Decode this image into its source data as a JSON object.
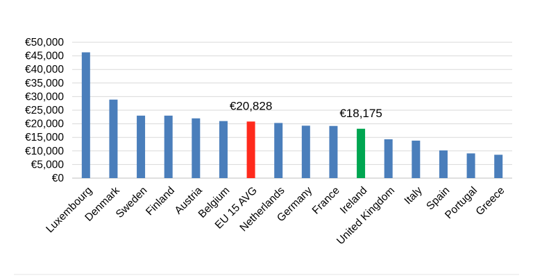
{
  "chart_data": {
    "type": "bar",
    "title": "",
    "xlabel": "",
    "ylabel": "",
    "ylim": [
      0,
      50000
    ],
    "ytick_step": 5000,
    "y_tick_labels": [
      "€0",
      "€5,000",
      "€10,000",
      "€15,000",
      "€20,000",
      "€25,000",
      "€30,000",
      "€35,000",
      "€40,000",
      "€45,000",
      "€50,000"
    ],
    "grid": true,
    "legend": "none",
    "categories": [
      "Luxembourg",
      "Denmark",
      "Sweden",
      "Finland",
      "Austria",
      "Belgium",
      "EU 15 AVG",
      "Netherlands",
      "Germany",
      "France",
      "Ireland",
      "United Kingdom",
      "Italy",
      "Spain",
      "Portugal",
      "Greece"
    ],
    "values": [
      46300,
      28900,
      23000,
      23000,
      22000,
      21000,
      20828,
      20300,
      19300,
      19200,
      18175,
      14300,
      13800,
      10200,
      9100,
      8600
    ],
    "bar_colors": [
      "#4a7ebb",
      "#4a7ebb",
      "#4a7ebb",
      "#4a7ebb",
      "#4a7ebb",
      "#4a7ebb",
      "#ff2a1c",
      "#4a7ebb",
      "#4a7ebb",
      "#4a7ebb",
      "#00a651",
      "#4a7ebb",
      "#4a7ebb",
      "#4a7ebb",
      "#4a7ebb",
      "#4a7ebb"
    ],
    "annotations": [
      {
        "category": "EU 15 AVG",
        "text": "€20,828"
      },
      {
        "category": "Ireland",
        "text": "€18,175"
      }
    ]
  }
}
